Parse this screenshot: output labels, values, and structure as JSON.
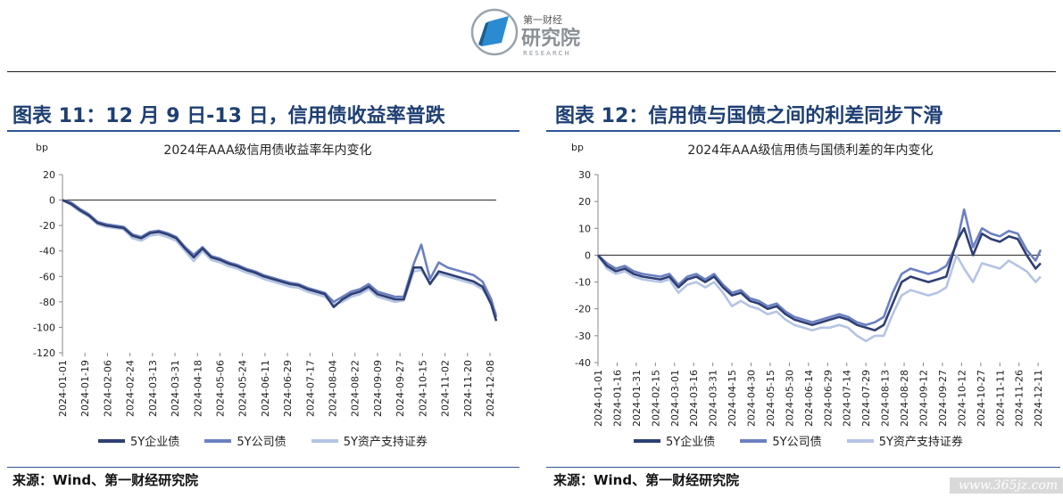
{
  "header": {
    "logo_name": "第一财经",
    "logo_main": "研究院",
    "logo_sub": "RESEARCH"
  },
  "figures": [
    {
      "title": "图表 11：12 月 9 日-13 日，信用债收益率普跌",
      "source": "来源：Wind、第一财经研究院"
    },
    {
      "title": "图表 12：信用债与国债之间的利差同步下滑",
      "source": "来源：Wind、第一财经研究院"
    }
  ],
  "watermark": "www.365jz.com",
  "colors": {
    "series1": "#2e3f73",
    "series2": "#6b80c2",
    "series3": "#b4c4e4",
    "title": "#1e3f73",
    "rule": "#2f5597"
  },
  "chart_data": [
    {
      "type": "line",
      "title": "2024年AAA级信用债收益率年内变化",
      "ylabel": "bp",
      "xlabel": "",
      "ylim": [
        -120,
        20
      ],
      "yticks": [
        20,
        0,
        -20,
        -40,
        -60,
        -80,
        -100,
        -120
      ],
      "xlim": [
        "2024-01-01",
        "2024-12-13"
      ],
      "x_ticks": [
        "2024-01-01",
        "2024-01-19",
        "2024-02-06",
        "2024-02-24",
        "2024-03-13",
        "2024-03-31",
        "2024-04-18",
        "2024-05-06",
        "2024-05-24",
        "2024-06-11",
        "2024-06-29",
        "2024-07-17",
        "2024-08-04",
        "2024-08-22",
        "2024-09-09",
        "2024-09-27",
        "2024-10-15",
        "2024-11-02",
        "2024-11-20",
        "2024-12-08"
      ],
      "x": [
        "2024-01-01",
        "2024-01-08",
        "2024-01-15",
        "2024-01-22",
        "2024-01-29",
        "2024-02-05",
        "2024-02-19",
        "2024-02-26",
        "2024-03-04",
        "2024-03-11",
        "2024-03-18",
        "2024-03-25",
        "2024-04-01",
        "2024-04-08",
        "2024-04-15",
        "2024-04-22",
        "2024-04-29",
        "2024-05-06",
        "2024-05-13",
        "2024-05-20",
        "2024-05-27",
        "2024-06-03",
        "2024-06-10",
        "2024-06-17",
        "2024-06-24",
        "2024-07-01",
        "2024-07-08",
        "2024-07-15",
        "2024-07-22",
        "2024-07-29",
        "2024-08-05",
        "2024-08-12",
        "2024-08-19",
        "2024-08-26",
        "2024-09-02",
        "2024-09-09",
        "2024-09-16",
        "2024-09-23",
        "2024-09-30",
        "2024-10-08",
        "2024-10-14",
        "2024-10-21",
        "2024-10-28",
        "2024-11-04",
        "2024-11-11",
        "2024-11-18",
        "2024-11-25",
        "2024-12-02",
        "2024-12-09",
        "2024-12-13"
      ],
      "series": [
        {
          "name": "5Y企业债",
          "color": "#2e3f73",
          "values": [
            0,
            -3,
            -8,
            -12,
            -18,
            -20,
            -22,
            -28,
            -30,
            -26,
            -25,
            -27,
            -30,
            -38,
            -45,
            -38,
            -45,
            -47,
            -50,
            -52,
            -55,
            -57,
            -60,
            -62,
            -64,
            -66,
            -67,
            -70,
            -72,
            -74,
            -84,
            -78,
            -74,
            -72,
            -68,
            -74,
            -76,
            -78,
            -78,
            -53,
            -53,
            -66,
            -56,
            -58,
            -60,
            -62,
            -64,
            -68,
            -82,
            -95
          ]
        },
        {
          "name": "5Y公司债",
          "color": "#6b80c2",
          "values": [
            0,
            -2,
            -7,
            -11,
            -17,
            -19,
            -21,
            -27,
            -29,
            -25,
            -24,
            -26,
            -29,
            -37,
            -43,
            -37,
            -44,
            -46,
            -49,
            -51,
            -54,
            -56,
            -59,
            -61,
            -63,
            -65,
            -66,
            -69,
            -71,
            -73,
            -80,
            -76,
            -72,
            -70,
            -66,
            -72,
            -74,
            -76,
            -76,
            -50,
            -35,
            -62,
            -49,
            -53,
            -55,
            -57,
            -59,
            -64,
            -78,
            -92
          ]
        },
        {
          "name": "5Y资产支持证券",
          "color": "#b4c4e4",
          "values": [
            0,
            -4,
            -9,
            -13,
            -19,
            -21,
            -23,
            -30,
            -32,
            -28,
            -27,
            -29,
            -32,
            -40,
            -48,
            -40,
            -47,
            -49,
            -52,
            -54,
            -57,
            -59,
            -62,
            -64,
            -66,
            -68,
            -69,
            -72,
            -74,
            -76,
            -82,
            -80,
            -76,
            -74,
            -70,
            -76,
            -78,
            -80,
            -79,
            -56,
            -55,
            -65,
            -58,
            -60,
            -62,
            -64,
            -66,
            -70,
            -80,
            -90
          ]
        }
      ],
      "legend_position": "bottom",
      "grid": false
    },
    {
      "type": "line",
      "title": "2024年AAA级信用债与国债利差的年内变化",
      "ylabel": "bp",
      "xlabel": "",
      "ylim": [
        -40,
        30
      ],
      "yticks": [
        30,
        20,
        10,
        0,
        -10,
        -20,
        -30,
        -40
      ],
      "xlim": [
        "2024-01-01",
        "2024-12-13"
      ],
      "x_ticks": [
        "2024-01-01",
        "2024-01-16",
        "2024-01-31",
        "2024-02-15",
        "2024-03-01",
        "2024-03-16",
        "2024-03-31",
        "2024-04-15",
        "2024-04-30",
        "2024-05-15",
        "2024-05-30",
        "2024-06-14",
        "2024-06-29",
        "2024-07-14",
        "2024-07-29",
        "2024-08-13",
        "2024-08-28",
        "2024-09-12",
        "2024-09-27",
        "2024-10-12",
        "2024-10-27",
        "2024-11-11",
        "2024-11-26",
        "2024-12-11"
      ],
      "x": [
        "2024-01-01",
        "2024-01-08",
        "2024-01-15",
        "2024-01-22",
        "2024-01-29",
        "2024-02-05",
        "2024-02-19",
        "2024-02-26",
        "2024-03-04",
        "2024-03-11",
        "2024-03-18",
        "2024-03-25",
        "2024-04-01",
        "2024-04-08",
        "2024-04-15",
        "2024-04-22",
        "2024-04-29",
        "2024-05-06",
        "2024-05-13",
        "2024-05-20",
        "2024-05-27",
        "2024-06-03",
        "2024-06-10",
        "2024-06-17",
        "2024-06-24",
        "2024-07-01",
        "2024-07-08",
        "2024-07-15",
        "2024-07-22",
        "2024-07-29",
        "2024-08-05",
        "2024-08-12",
        "2024-08-19",
        "2024-08-26",
        "2024-09-02",
        "2024-09-09",
        "2024-09-16",
        "2024-09-23",
        "2024-09-30",
        "2024-10-08",
        "2024-10-14",
        "2024-10-21",
        "2024-10-28",
        "2024-11-04",
        "2024-11-11",
        "2024-11-18",
        "2024-11-25",
        "2024-12-02",
        "2024-12-09",
        "2024-12-13"
      ],
      "series": [
        {
          "name": "5Y企业债",
          "color": "#2e3f73",
          "values": [
            0,
            -4,
            -6,
            -5,
            -7,
            -8,
            -9,
            -8,
            -12,
            -9,
            -8,
            -10,
            -8,
            -12,
            -15,
            -14,
            -17,
            -18,
            -20,
            -19,
            -22,
            -24,
            -25,
            -26,
            -25,
            -24,
            -23,
            -24,
            -26,
            -27,
            -28,
            -26,
            -18,
            -10,
            -8,
            -9,
            -10,
            -9,
            -8,
            5,
            10,
            0,
            8,
            6,
            5,
            7,
            6,
            0,
            -5,
            -3
          ]
        },
        {
          "name": "5Y公司债",
          "color": "#6b80c2",
          "values": [
            0,
            -3,
            -5,
            -4,
            -6,
            -7,
            -8,
            -7,
            -11,
            -8,
            -7,
            -9,
            -7,
            -11,
            -14,
            -13,
            -16,
            -17,
            -19,
            -18,
            -21,
            -23,
            -24,
            -25,
            -24,
            -23,
            -22,
            -23,
            -25,
            -26,
            -25,
            -23,
            -14,
            -7,
            -5,
            -6,
            -7,
            -6,
            -4,
            4,
            17,
            3,
            10,
            8,
            7,
            9,
            8,
            2,
            -2,
            2
          ]
        },
        {
          "name": "5Y资产支持证券",
          "color": "#b4c4e4",
          "values": [
            0,
            -5,
            -7,
            -6,
            -8,
            -9,
            -10,
            -9,
            -14,
            -11,
            -10,
            -12,
            -10,
            -14,
            -19,
            -17,
            -19,
            -20,
            -22,
            -21,
            -24,
            -26,
            -27,
            -28,
            -27,
            -27,
            -26,
            -27,
            -30,
            -32,
            -30,
            -30,
            -22,
            -15,
            -13,
            -14,
            -15,
            -14,
            -12,
            0,
            -5,
            -10,
            -3,
            -4,
            -5,
            -2,
            -4,
            -6,
            -10,
            -8
          ]
        }
      ],
      "legend_position": "bottom",
      "grid": false
    }
  ]
}
